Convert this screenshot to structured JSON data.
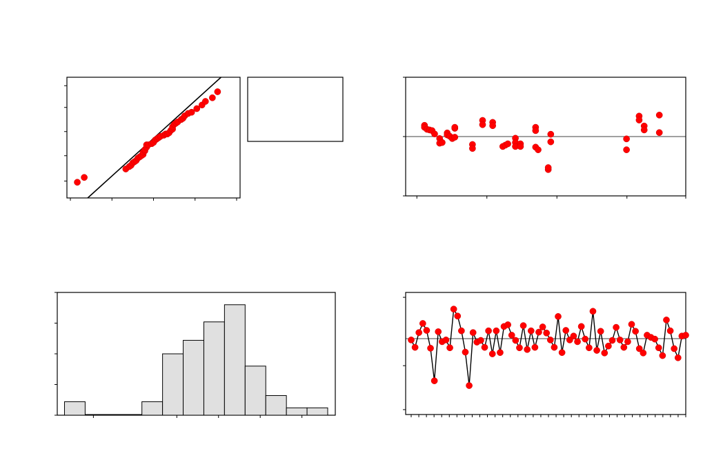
{
  "chart_data": [
    {
      "id": "normal-probability",
      "type": "scatter",
      "fit_line": [
        [
          0,
          0
        ],
        [
          1,
          1
        ]
      ],
      "ylim": [
        0,
        1
      ],
      "xlim": [
        0,
        1
      ],
      "points": [
        [
          0.06,
          0.13
        ],
        [
          0.1,
          0.17
        ],
        [
          0.34,
          0.24
        ],
        [
          0.36,
          0.26
        ],
        [
          0.37,
          0.27
        ],
        [
          0.38,
          0.29
        ],
        [
          0.39,
          0.3
        ],
        [
          0.4,
          0.31
        ],
        [
          0.41,
          0.33
        ],
        [
          0.42,
          0.34
        ],
        [
          0.43,
          0.35
        ],
        [
          0.44,
          0.36
        ],
        [
          0.44,
          0.38
        ],
        [
          0.45,
          0.39
        ],
        [
          0.45,
          0.4
        ],
        [
          0.46,
          0.42
        ],
        [
          0.46,
          0.44
        ],
        [
          0.47,
          0.44
        ],
        [
          0.49,
          0.45
        ],
        [
          0.5,
          0.46
        ],
        [
          0.51,
          0.48
        ],
        [
          0.52,
          0.49
        ],
        [
          0.53,
          0.5
        ],
        [
          0.54,
          0.51
        ],
        [
          0.56,
          0.52
        ],
        [
          0.57,
          0.53
        ],
        [
          0.58,
          0.53
        ],
        [
          0.59,
          0.54
        ],
        [
          0.6,
          0.56
        ],
        [
          0.61,
          0.57
        ],
        [
          0.61,
          0.59
        ],
        [
          0.62,
          0.61
        ],
        [
          0.63,
          0.62
        ],
        [
          0.64,
          0.63
        ],
        [
          0.66,
          0.65
        ],
        [
          0.67,
          0.66
        ],
        [
          0.68,
          0.68
        ],
        [
          0.7,
          0.7
        ],
        [
          0.72,
          0.71
        ],
        [
          0.75,
          0.74
        ],
        [
          0.78,
          0.77
        ],
        [
          0.8,
          0.8
        ],
        [
          0.84,
          0.83
        ],
        [
          0.87,
          0.88
        ]
      ]
    },
    {
      "id": "residuals-vs-fits",
      "type": "scatter",
      "xlim": [
        0,
        1
      ],
      "ylim": [
        -1,
        1
      ],
      "ref_line": 0,
      "points": [
        [
          0.02,
          0.34
        ],
        [
          0.02,
          0.28
        ],
        [
          0.03,
          0.22
        ],
        [
          0.04,
          0.2
        ],
        [
          0.05,
          0.18
        ],
        [
          0.06,
          0.08
        ],
        [
          0.08,
          -0.06
        ],
        [
          0.08,
          -0.2
        ],
        [
          0.09,
          -0.18
        ],
        [
          0.11,
          0.11
        ],
        [
          0.11,
          0.05
        ],
        [
          0.12,
          0.01
        ],
        [
          0.13,
          -0.06
        ],
        [
          0.14,
          -0.02
        ],
        [
          0.14,
          0.25
        ],
        [
          0.14,
          0.28
        ],
        [
          0.21,
          -0.24
        ],
        [
          0.21,
          -0.36
        ],
        [
          0.25,
          0.49
        ],
        [
          0.25,
          0.36
        ],
        [
          0.29,
          0.43
        ],
        [
          0.29,
          0.33
        ],
        [
          0.33,
          -0.3
        ],
        [
          0.34,
          -0.26
        ],
        [
          0.35,
          -0.22
        ],
        [
          0.38,
          -0.05
        ],
        [
          0.38,
          -0.18
        ],
        [
          0.38,
          -0.3
        ],
        [
          0.4,
          -0.22
        ],
        [
          0.4,
          -0.3
        ],
        [
          0.46,
          0.28
        ],
        [
          0.46,
          0.18
        ],
        [
          0.46,
          -0.32
        ],
        [
          0.47,
          -0.4
        ],
        [
          0.51,
          -1.0
        ],
        [
          0.51,
          -0.94
        ],
        [
          0.52,
          0.07
        ],
        [
          0.52,
          -0.16
        ],
        [
          0.82,
          -0.07
        ],
        [
          0.82,
          -0.4
        ],
        [
          0.87,
          0.62
        ],
        [
          0.87,
          0.5
        ],
        [
          0.89,
          0.32
        ],
        [
          0.89,
          0.2
        ],
        [
          0.95,
          0.65
        ],
        [
          0.95,
          0.12
        ]
      ]
    },
    {
      "id": "histogram",
      "type": "bar",
      "ylim": [
        0,
        1
      ],
      "bins": [
        {
          "left": 0.02,
          "right": 0.1,
          "height": 0.11
        },
        {
          "left": 0.1,
          "right": 0.32,
          "height": 0.0
        },
        {
          "left": 0.32,
          "right": 0.4,
          "height": 0.11
        },
        {
          "left": 0.4,
          "right": 0.48,
          "height": 0.5
        },
        {
          "left": 0.48,
          "right": 0.56,
          "height": 0.61
        },
        {
          "left": 0.56,
          "right": 0.64,
          "height": 0.76
        },
        {
          "left": 0.64,
          "right": 0.72,
          "height": 0.9
        },
        {
          "left": 0.72,
          "right": 0.8,
          "height": 0.4
        },
        {
          "left": 0.8,
          "right": 0.88,
          "height": 0.16
        },
        {
          "left": 0.88,
          "right": 0.96,
          "height": 0.06
        },
        {
          "left": 0.96,
          "right": 1.04,
          "height": 0.06
        }
      ]
    },
    {
      "id": "residuals-vs-order",
      "type": "line",
      "ylim": [
        -1,
        1
      ],
      "ref_line": 0,
      "values": [
        -0.03,
        -0.2,
        0.14,
        0.35,
        0.19,
        -0.22,
        -0.97,
        0.16,
        -0.07,
        -0.03,
        -0.21,
        0.68,
        0.52,
        0.18,
        -0.31,
        -1.08,
        0.14,
        -0.08,
        -0.04,
        -0.2,
        0.18,
        -0.35,
        0.18,
        -0.32,
        0.28,
        0.32,
        0.08,
        -0.04,
        -0.21,
        0.3,
        -0.25,
        0.18,
        -0.2,
        0.15,
        0.27,
        0.13,
        -0.03,
        -0.2,
        0.51,
        -0.32,
        0.19,
        -0.03,
        0.06,
        -0.07,
        0.28,
        -0.01,
        -0.21,
        0.63,
        -0.27,
        0.17,
        -0.33,
        -0.17,
        -0.04,
        0.26,
        -0.03,
        -0.2,
        -0.07,
        0.33,
        0.17,
        -0.23,
        -0.33,
        0.08,
        0.03,
        -0.01,
        -0.21,
        -0.39,
        0.43,
        0.18,
        -0.23,
        -0.44,
        0.06,
        0.08
      ]
    }
  ],
  "legend": {
    "visible": true,
    "entries": []
  }
}
